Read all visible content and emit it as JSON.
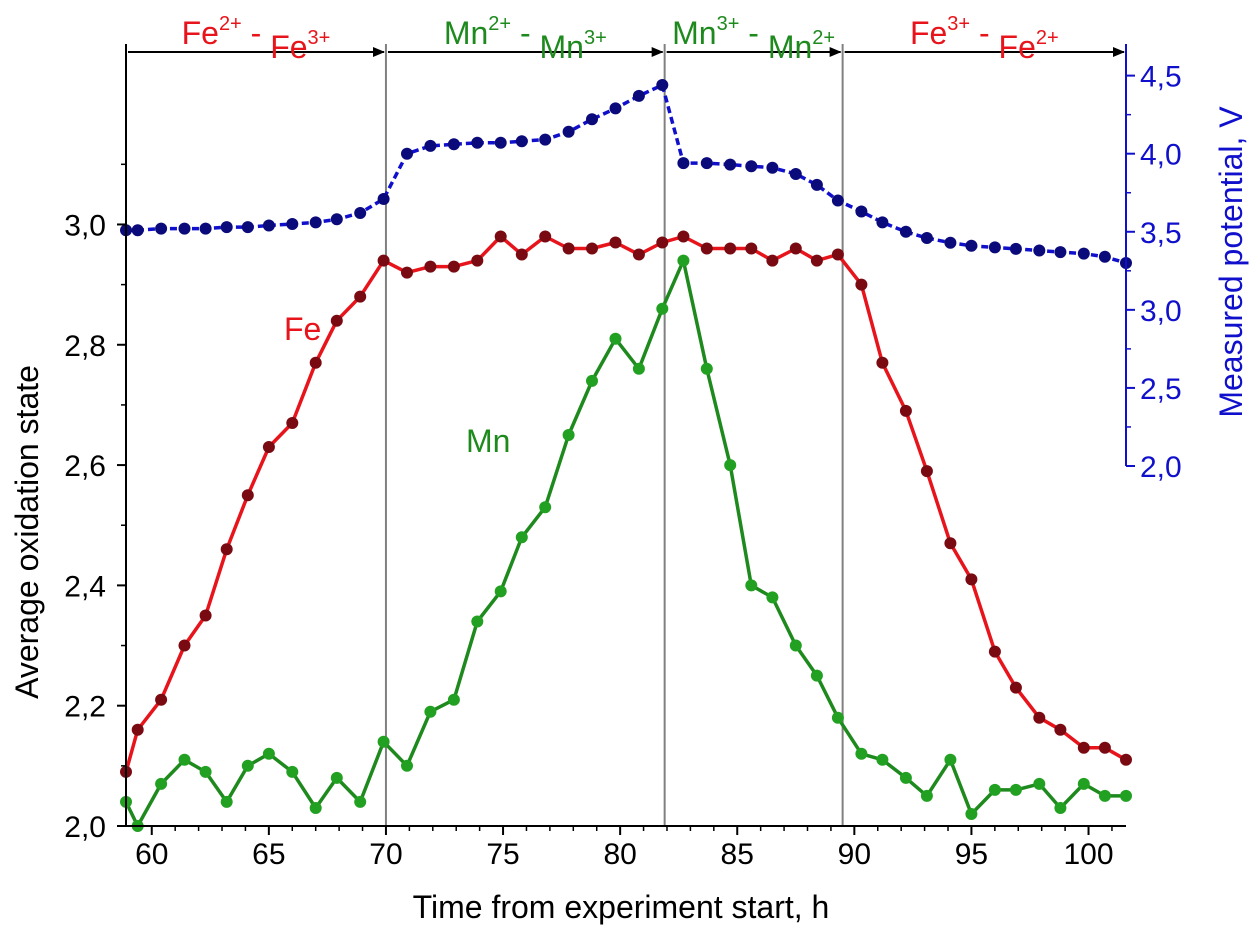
{
  "chart_data": {
    "type": "line",
    "xlabel": "Time from experiment start, h",
    "ylabel_left": "Average oxidation state",
    "ylabel_right": "Measured potential, V",
    "xlim": [
      58.9,
      101.6
    ],
    "ylim_left": [
      2.0,
      3.3
    ],
    "ylim_right": [
      2.0,
      4.6
    ],
    "x_ticks": [
      "60",
      "65",
      "70",
      "75",
      "80",
      "85",
      "90",
      "95",
      "100"
    ],
    "y_left_ticks": [
      "2,0",
      "2,2",
      "2,4",
      "2,6",
      "2,8",
      "3,0"
    ],
    "y_right_ticks": [
      "2,0",
      "2,5",
      "3,0",
      "3,5",
      "4,0",
      "4,5"
    ],
    "phase_boundaries": [
      58.9,
      70.0,
      81.9,
      89.5,
      101.6
    ],
    "phases": [
      {
        "ion1": "Fe",
        "ch1": "2+",
        "sep": " - ",
        "ion2": "Fe",
        "ch2": "3+",
        "color": "#e8141b"
      },
      {
        "ion1": "Mn",
        "ch1": "2+",
        "sep": " - ",
        "ion2": "Mn",
        "ch2": "3+",
        "color": "#1e8a1e"
      },
      {
        "ion1": "Mn",
        "ch1": "3+",
        "sep": " - ",
        "ion2": "Mn",
        "ch2": "2+",
        "color": "#1e8a1e"
      },
      {
        "ion1": "Fe",
        "ch1": "3+",
        "sep": " - ",
        "ion2": "Fe",
        "ch2": "2+",
        "color": "#e8141b"
      }
    ],
    "labels": {
      "fe": "Fe",
      "mn": "Mn"
    },
    "series": [
      {
        "name": "Fe",
        "axis": "left",
        "line_color": "#e8141b",
        "marker_color": "#7a0a12",
        "x": [
          58.9,
          59.4,
          60.4,
          61.4,
          62.3,
          63.2,
          64.1,
          65.0,
          66.0,
          67.0,
          67.9,
          68.9,
          69.9,
          70.9,
          71.9,
          72.9,
          73.9,
          74.9,
          75.8,
          76.8,
          77.8,
          78.8,
          79.8,
          80.8,
          81.8,
          82.7,
          83.7,
          84.7,
          85.6,
          86.5,
          87.5,
          88.4,
          89.3,
          90.3,
          91.2,
          92.2,
          93.1,
          94.1,
          95.0,
          96.0,
          96.9,
          97.9,
          98.8,
          99.8,
          100.7,
          101.6
        ],
        "y": [
          2.09,
          2.16,
          2.21,
          2.3,
          2.35,
          2.46,
          2.55,
          2.63,
          2.67,
          2.77,
          2.84,
          2.88,
          2.94,
          2.92,
          2.93,
          2.93,
          2.94,
          2.98,
          2.95,
          2.98,
          2.96,
          2.96,
          2.97,
          2.95,
          2.97,
          2.98,
          2.96,
          2.96,
          2.96,
          2.94,
          2.96,
          2.94,
          2.95,
          2.9,
          2.77,
          2.69,
          2.59,
          2.47,
          2.41,
          2.29,
          2.23,
          2.18,
          2.16,
          2.13,
          2.13,
          2.11
        ]
      },
      {
        "name": "Mn",
        "axis": "left",
        "line_color": "#1e8a1e",
        "marker_color": "#22a022",
        "x": [
          58.9,
          59.4,
          60.4,
          61.4,
          62.3,
          63.2,
          64.1,
          65.0,
          66.0,
          67.0,
          67.9,
          68.9,
          69.9,
          70.9,
          71.9,
          72.9,
          73.9,
          74.9,
          75.8,
          76.8,
          77.8,
          78.8,
          79.8,
          80.8,
          81.8,
          82.7,
          83.7,
          84.7,
          85.6,
          86.5,
          87.5,
          88.4,
          89.3,
          90.3,
          91.2,
          92.2,
          93.1,
          94.1,
          95.0,
          96.0,
          96.9,
          97.9,
          98.8,
          99.8,
          100.7,
          101.6
        ],
        "y": [
          2.04,
          2.0,
          2.07,
          2.11,
          2.09,
          2.04,
          2.1,
          2.12,
          2.09,
          2.03,
          2.08,
          2.04,
          2.14,
          2.1,
          2.19,
          2.21,
          2.34,
          2.39,
          2.48,
          2.53,
          2.65,
          2.74,
          2.81,
          2.76,
          2.86,
          2.94,
          2.76,
          2.6,
          2.4,
          2.38,
          2.3,
          2.25,
          2.18,
          2.12,
          2.11,
          2.08,
          2.05,
          2.11,
          2.02,
          2.06,
          2.06,
          2.07,
          2.03,
          2.07,
          2.05,
          2.05
        ]
      },
      {
        "name": "Potential",
        "axis": "right",
        "line_color": "#1010cc",
        "marker_color": "#0a0a7a",
        "x": [
          58.9,
          59.4,
          60.4,
          61.4,
          62.3,
          63.2,
          64.1,
          65.0,
          66.0,
          67.0,
          67.9,
          68.9,
          69.9,
          70.9,
          71.9,
          72.9,
          73.9,
          74.9,
          75.8,
          76.8,
          77.8,
          78.8,
          79.8,
          80.8,
          81.8,
          82.7,
          83.7,
          84.7,
          85.6,
          86.5,
          87.5,
          88.4,
          89.3,
          90.3,
          91.2,
          92.2,
          93.1,
          94.1,
          95.0,
          96.0,
          96.9,
          97.9,
          98.8,
          99.8,
          100.7,
          101.6
        ],
        "y": [
          3.51,
          3.51,
          3.52,
          3.52,
          3.52,
          3.53,
          3.53,
          3.54,
          3.55,
          3.56,
          3.58,
          3.62,
          3.71,
          4.0,
          4.05,
          4.06,
          4.07,
          4.07,
          4.08,
          4.09,
          4.14,
          4.22,
          4.29,
          4.37,
          4.44,
          3.94,
          3.94,
          3.93,
          3.92,
          3.91,
          3.87,
          3.8,
          3.7,
          3.63,
          3.56,
          3.5,
          3.46,
          3.43,
          3.41,
          3.4,
          3.39,
          3.38,
          3.37,
          3.36,
          3.34,
          3.3
        ]
      }
    ],
    "grid": false,
    "legend": "none"
  },
  "colors": {
    "fe_line": "#e8141b",
    "mn_line": "#1e8a1e",
    "potential_line": "#1010cc",
    "axis": "#000000",
    "right_axis": "#1010cc",
    "divider": "#808080"
  }
}
